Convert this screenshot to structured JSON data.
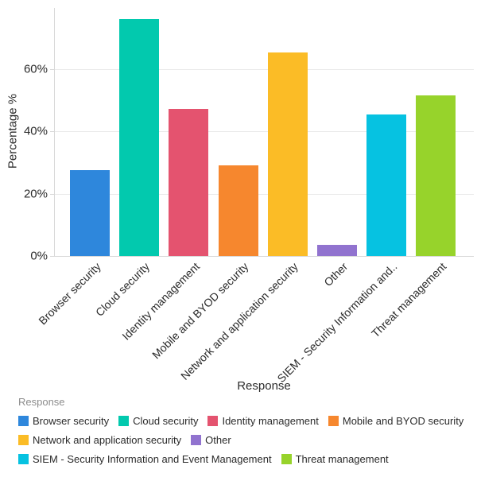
{
  "chart_data": {
    "type": "bar",
    "xlabel": "Response",
    "ylabel": "Percentage %",
    "categories": [
      "Browser security",
      "Cloud security",
      "Identity management",
      "Mobile and BYOD security",
      "Network and application security",
      "Other",
      "SIEM - Security Information and Event Management",
      "Threat management"
    ],
    "x_tick_labels": [
      "Browser security",
      "Cloud security",
      "Identity management",
      "Mobile and BYOD security",
      "Network and application security",
      "Other",
      "SIEM - Security Information and..",
      "Threat management"
    ],
    "values": [
      27.5,
      76,
      47.3,
      29,
      65.3,
      3.5,
      45.5,
      51.6
    ],
    "unit": "%",
    "ylim": [
      0,
      79.6
    ],
    "yticks": [
      0,
      20,
      40,
      60
    ],
    "ytick_labels": [
      "0%",
      "20%",
      "40%",
      "60%"
    ],
    "grid": "horizontal",
    "bar_colors": [
      "#2E87DC",
      "#02C9AE",
      "#E4536F",
      "#F6872E",
      "#FBBC26",
      "#9173CF",
      "#06C2E1",
      "#97D32B"
    ],
    "legend": {
      "position": "bottom",
      "title": "Response",
      "items": [
        {
          "label": "Browser security",
          "color": "#2E87DC"
        },
        {
          "label": "Cloud security",
          "color": "#02C9AE"
        },
        {
          "label": "Identity management",
          "color": "#E4536F"
        },
        {
          "label": "Mobile and BYOD security",
          "color": "#F6872E"
        },
        {
          "label": "Network and application security",
          "color": "#FBBC26"
        },
        {
          "label": "Other",
          "color": "#9173CF"
        },
        {
          "label": "SIEM - Security Information and Event Management",
          "color": "#06C2E1"
        },
        {
          "label": "Threat management",
          "color": "#97D32B"
        }
      ]
    },
    "style_colors": {
      "grid": "#EAEAEA",
      "axis_line": "#D8D8D8",
      "tick_text": "#2B2B2B",
      "legend_title_text": "#8C8C8C"
    }
  }
}
